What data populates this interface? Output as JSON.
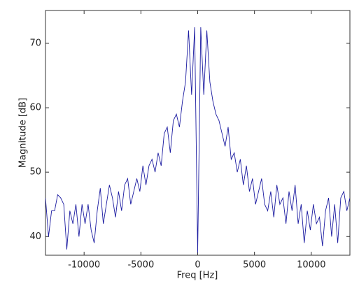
{
  "chart_data": {
    "type": "line",
    "xlabel": "Freq [Hz]",
    "ylabel": "Magnitude [dB]",
    "x": [
      -13400,
      -13132,
      -12864,
      -12596,
      -12328,
      -12060,
      -11792,
      -11524,
      -11256,
      -10988,
      -10720,
      -10452,
      -10184,
      -9916,
      -9648,
      -9380,
      -9112,
      -8844,
      -8576,
      -8308,
      -8040,
      -7772,
      -7504,
      -7236,
      -6968,
      -6700,
      -6432,
      -6164,
      -5896,
      -5628,
      -5360,
      -5092,
      -4824,
      -4556,
      -4288,
      -4020,
      -3752,
      -3484,
      -3216,
      -2948,
      -2680,
      -2412,
      -2144,
      -1876,
      -1608,
      -1340,
      -1072,
      -804,
      -536,
      -268,
      0,
      268,
      536,
      804,
      1072,
      1340,
      1608,
      1876,
      2144,
      2412,
      2680,
      2948,
      3216,
      3484,
      3752,
      4020,
      4288,
      4556,
      4824,
      5092,
      5360,
      5628,
      5896,
      6164,
      6432,
      6700,
      6968,
      7236,
      7504,
      7772,
      8040,
      8308,
      8576,
      8844,
      9112,
      9380,
      9648,
      9916,
      10184,
      10452,
      10720,
      10988,
      11256,
      11524,
      11792,
      12060,
      12328,
      12596,
      12864,
      13132,
      13400
    ],
    "series": [
      {
        "color": "#1a1aa0",
        "values": [
          46,
          40,
          44,
          44,
          46.5,
          46,
          45,
          38,
          44,
          42,
          45,
          40,
          45,
          42,
          45,
          41,
          39,
          44,
          47.5,
          42,
          45,
          48,
          46,
          43,
          47,
          44,
          48,
          49,
          45,
          47,
          49,
          47,
          51,
          48,
          51,
          52,
          50,
          53,
          51,
          56,
          57,
          53,
          58,
          59,
          57,
          61,
          64,
          72,
          62,
          72.5,
          37.5,
          72.5,
          62,
          72,
          64,
          61,
          59,
          58,
          56,
          54,
          57,
          52,
          53,
          50,
          52,
          48,
          51,
          47,
          49,
          45,
          47,
          49,
          45,
          44,
          47,
          43,
          48,
          45,
          46,
          42,
          47,
          44,
          48,
          42,
          45,
          39,
          44,
          41,
          45,
          42,
          43,
          38.5,
          44,
          46,
          40,
          45,
          39,
          46,
          47,
          44,
          46
        ]
      }
    ],
    "xlim": [
      -13400,
      13400
    ],
    "ylim": [
      37.1,
      75.1
    ],
    "xticks": [
      -10000,
      -5000,
      0,
      5000,
      10000
    ],
    "yticks": [
      40,
      50,
      60,
      70
    ]
  }
}
